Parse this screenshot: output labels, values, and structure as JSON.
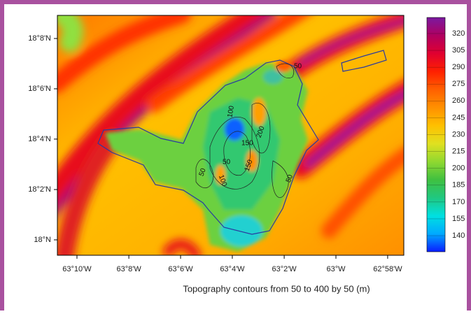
{
  "chart_data": {
    "type": "map",
    "caption": "Topography contours from 50 to 400 by 50 (m)",
    "xlim": [
      -63.1793,
      -62.9563
    ],
    "ylim": [
      17.9898,
      18.1486
    ],
    "xticks": [
      {
        "value": -63.1667,
        "label": "63°10'W"
      },
      {
        "value": -63.1333,
        "label": "63°8'W"
      },
      {
        "value": -63.1,
        "label": "63°6'W"
      },
      {
        "value": -63.0667,
        "label": "63°4'W"
      },
      {
        "value": -63.0333,
        "label": "63°2'W"
      },
      {
        "value": -63.0,
        "label": "63°W"
      },
      {
        "value": -62.9667,
        "label": "62°58'W"
      }
    ],
    "yticks": [
      {
        "value": 18.1333,
        "label": "18°8'N"
      },
      {
        "value": 18.1,
        "label": "18°6'N"
      },
      {
        "value": 18.0667,
        "label": "18°4'N"
      },
      {
        "value": 18.0333,
        "label": "18°2'N"
      },
      {
        "value": 18,
        "label": "18°N"
      }
    ],
    "clim": [
      125.7,
      334.3
    ],
    "colorbar_ticks": [
      320,
      305,
      290,
      275,
      260,
      245,
      230,
      215,
      200,
      185,
      170,
      155,
      140
    ],
    "colorbar_colors": [
      "#0a1cff",
      "#00aaff",
      "#00e0e0",
      "#20c880",
      "#40c040",
      "#90d830",
      "#e0e020",
      "#ffc000",
      "#ff9000",
      "#ff6000",
      "#ff2000",
      "#e00030",
      "#b00060",
      "#7a1aa0"
    ],
    "contour_labels": [
      "50",
      "100",
      "150",
      "200",
      "50",
      "100",
      "150",
      "50",
      "50"
    ]
  }
}
